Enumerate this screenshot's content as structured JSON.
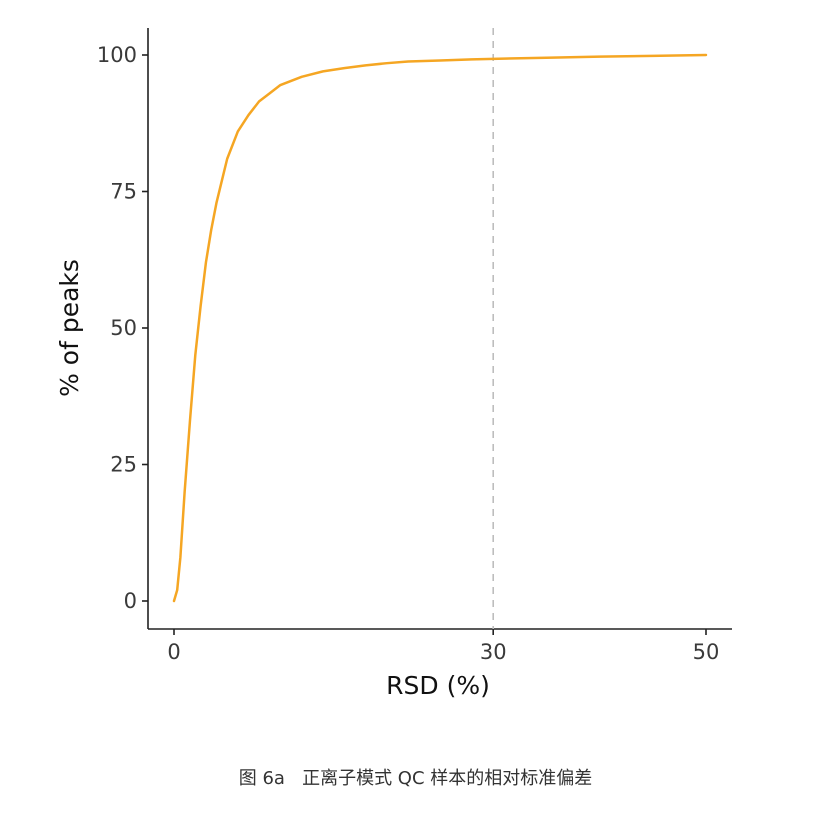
{
  "chart_data": {
    "type": "line",
    "xlabel": "RSD (%)",
    "ylabel": "% of peaks",
    "xlim": [
      0,
      50
    ],
    "ylim": [
      0,
      100
    ],
    "x_ticks": [
      0,
      30,
      50
    ],
    "y_ticks": [
      0,
      25,
      50,
      75,
      100
    ],
    "grid": false,
    "legend": "none",
    "reference_line": {
      "axis": "x",
      "value": 30,
      "style": "dashed",
      "color": "#bdbdbd"
    },
    "line_color": "#f5a623",
    "series": [
      {
        "x": [
          0,
          0.3,
          0.6,
          1,
          1.5,
          2,
          2.5,
          3,
          3.5,
          4,
          4.5,
          5,
          6,
          7,
          8,
          9,
          10,
          12,
          14,
          16,
          18,
          20,
          22,
          25,
          28,
          30,
          35,
          40,
          45,
          50
        ],
        "y": [
          0,
          2,
          8,
          20,
          33,
          45,
          54,
          62,
          68,
          73,
          77,
          81,
          86,
          89,
          91.5,
          93,
          94.5,
          96,
          97,
          97.6,
          98.1,
          98.5,
          98.8,
          99,
          99.2,
          99.3,
          99.5,
          99.7,
          99.85,
          100
        ]
      }
    ]
  },
  "caption": "图 6a   正离子模式 QC 样本的相对标准偏差"
}
